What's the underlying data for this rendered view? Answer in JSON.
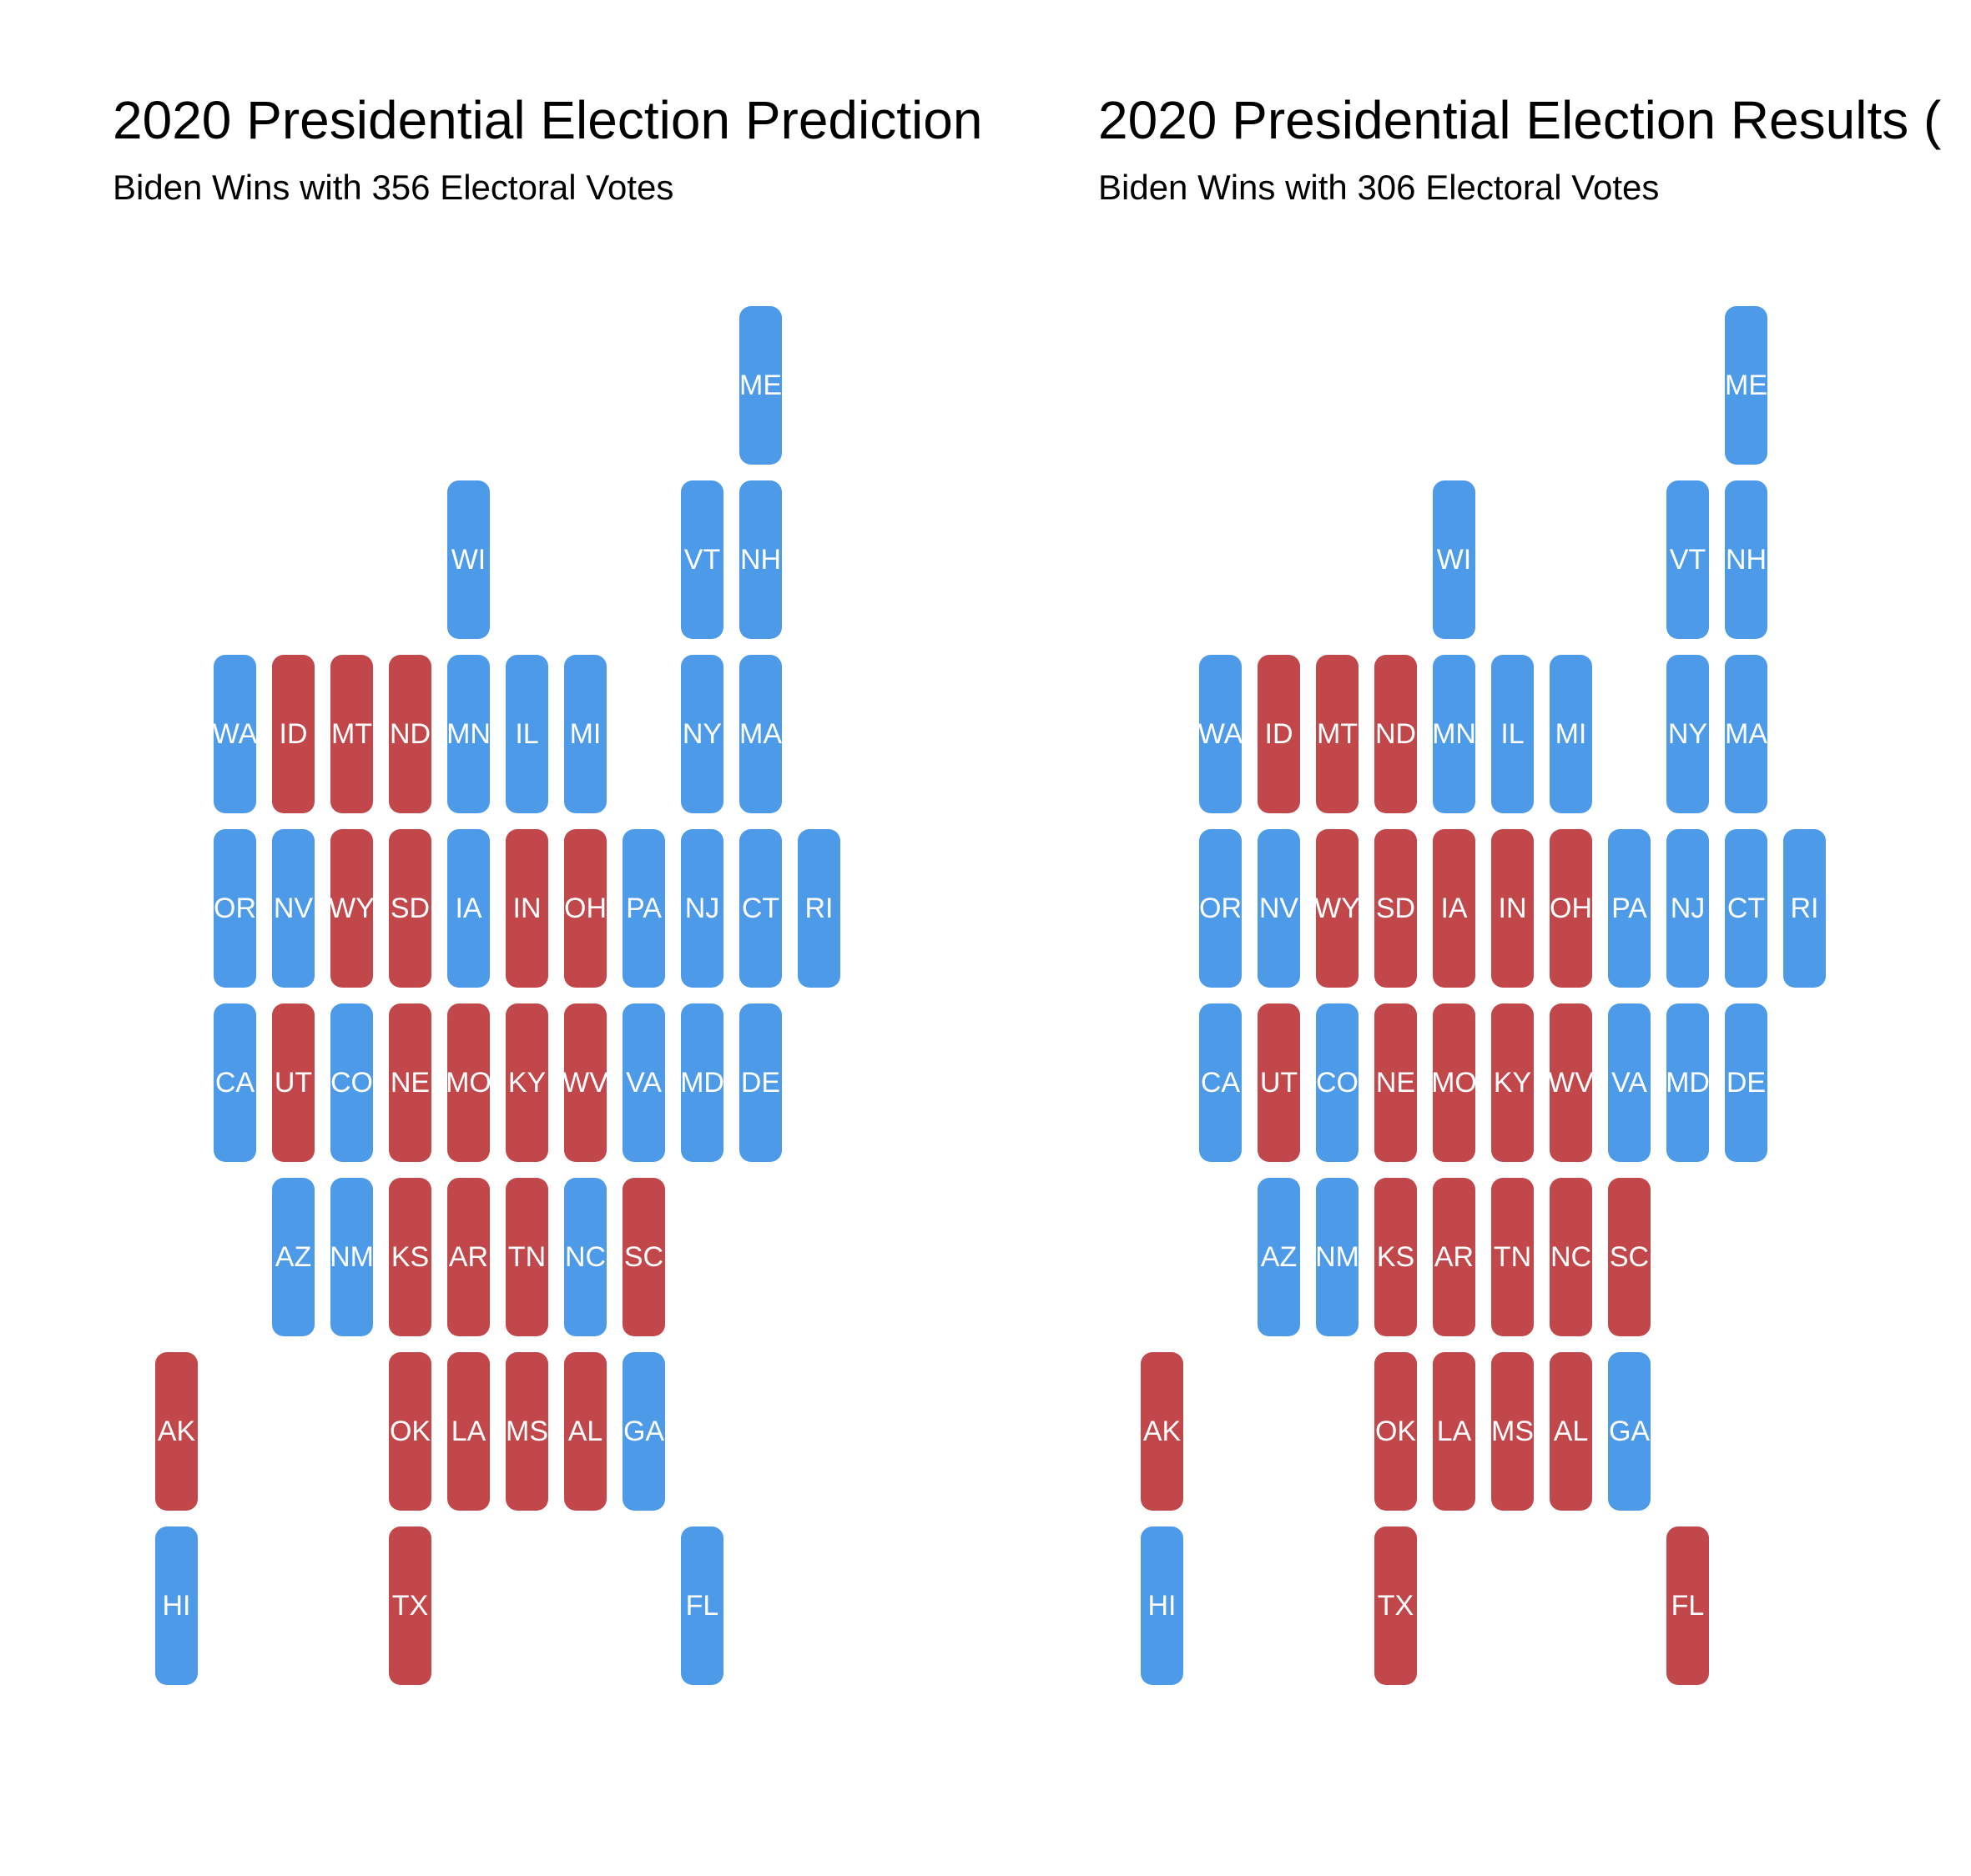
{
  "colors": {
    "dem": "#4d9be8",
    "rep": "#c1474a"
  },
  "panels": [
    {
      "title": "2020 Presidential Election Prediction",
      "subtitle": "Biden Wins with 356 Electoral Votes",
      "states": [
        {
          "abbr": "ME",
          "row": 0,
          "col": 10,
          "winner": "dem"
        },
        {
          "abbr": "WI",
          "row": 1,
          "col": 5,
          "winner": "dem"
        },
        {
          "abbr": "VT",
          "row": 1,
          "col": 9,
          "winner": "dem"
        },
        {
          "abbr": "NH",
          "row": 1,
          "col": 10,
          "winner": "dem"
        },
        {
          "abbr": "WA",
          "row": 2,
          "col": 1,
          "winner": "dem"
        },
        {
          "abbr": "ID",
          "row": 2,
          "col": 2,
          "winner": "rep"
        },
        {
          "abbr": "MT",
          "row": 2,
          "col": 3,
          "winner": "rep"
        },
        {
          "abbr": "ND",
          "row": 2,
          "col": 4,
          "winner": "rep"
        },
        {
          "abbr": "MN",
          "row": 2,
          "col": 5,
          "winner": "dem"
        },
        {
          "abbr": "IL",
          "row": 2,
          "col": 6,
          "winner": "dem"
        },
        {
          "abbr": "MI",
          "row": 2,
          "col": 7,
          "winner": "dem"
        },
        {
          "abbr": "NY",
          "row": 2,
          "col": 9,
          "winner": "dem"
        },
        {
          "abbr": "MA",
          "row": 2,
          "col": 10,
          "winner": "dem"
        },
        {
          "abbr": "OR",
          "row": 3,
          "col": 1,
          "winner": "dem"
        },
        {
          "abbr": "NV",
          "row": 3,
          "col": 2,
          "winner": "dem"
        },
        {
          "abbr": "WY",
          "row": 3,
          "col": 3,
          "winner": "rep"
        },
        {
          "abbr": "SD",
          "row": 3,
          "col": 4,
          "winner": "rep"
        },
        {
          "abbr": "IA",
          "row": 3,
          "col": 5,
          "winner": "dem"
        },
        {
          "abbr": "IN",
          "row": 3,
          "col": 6,
          "winner": "rep"
        },
        {
          "abbr": "OH",
          "row": 3,
          "col": 7,
          "winner": "rep"
        },
        {
          "abbr": "PA",
          "row": 3,
          "col": 8,
          "winner": "dem"
        },
        {
          "abbr": "NJ",
          "row": 3,
          "col": 9,
          "winner": "dem"
        },
        {
          "abbr": "CT",
          "row": 3,
          "col": 10,
          "winner": "dem"
        },
        {
          "abbr": "RI",
          "row": 3,
          "col": 11,
          "winner": "dem"
        },
        {
          "abbr": "CA",
          "row": 4,
          "col": 1,
          "winner": "dem"
        },
        {
          "abbr": "UT",
          "row": 4,
          "col": 2,
          "winner": "rep"
        },
        {
          "abbr": "CO",
          "row": 4,
          "col": 3,
          "winner": "dem"
        },
        {
          "abbr": "NE",
          "row": 4,
          "col": 4,
          "winner": "rep"
        },
        {
          "abbr": "MO",
          "row": 4,
          "col": 5,
          "winner": "rep"
        },
        {
          "abbr": "KY",
          "row": 4,
          "col": 6,
          "winner": "rep"
        },
        {
          "abbr": "WV",
          "row": 4,
          "col": 7,
          "winner": "rep"
        },
        {
          "abbr": "VA",
          "row": 4,
          "col": 8,
          "winner": "dem"
        },
        {
          "abbr": "MD",
          "row": 4,
          "col": 9,
          "winner": "dem"
        },
        {
          "abbr": "DE",
          "row": 4,
          "col": 10,
          "winner": "dem"
        },
        {
          "abbr": "AZ",
          "row": 5,
          "col": 2,
          "winner": "dem"
        },
        {
          "abbr": "NM",
          "row": 5,
          "col": 3,
          "winner": "dem"
        },
        {
          "abbr": "KS",
          "row": 5,
          "col": 4,
          "winner": "rep"
        },
        {
          "abbr": "AR",
          "row": 5,
          "col": 5,
          "winner": "rep"
        },
        {
          "abbr": "TN",
          "row": 5,
          "col": 6,
          "winner": "rep"
        },
        {
          "abbr": "NC",
          "row": 5,
          "col": 7,
          "winner": "dem"
        },
        {
          "abbr": "SC",
          "row": 5,
          "col": 8,
          "winner": "rep"
        },
        {
          "abbr": "AK",
          "row": 6,
          "col": 0,
          "winner": "rep"
        },
        {
          "abbr": "OK",
          "row": 6,
          "col": 4,
          "winner": "rep"
        },
        {
          "abbr": "LA",
          "row": 6,
          "col": 5,
          "winner": "rep"
        },
        {
          "abbr": "MS",
          "row": 6,
          "col": 6,
          "winner": "rep"
        },
        {
          "abbr": "AL",
          "row": 6,
          "col": 7,
          "winner": "rep"
        },
        {
          "abbr": "GA",
          "row": 6,
          "col": 8,
          "winner": "dem"
        },
        {
          "abbr": "HI",
          "row": 7,
          "col": 0,
          "winner": "dem"
        },
        {
          "abbr": "TX",
          "row": 7,
          "col": 4,
          "winner": "rep"
        },
        {
          "abbr": "FL",
          "row": 7,
          "col": 9,
          "winner": "dem"
        }
      ]
    },
    {
      "title": "2020 Presidential Election Results (",
      "subtitle": "Biden Wins with 306 Electoral Votes",
      "states": [
        {
          "abbr": "ME",
          "row": 0,
          "col": 10,
          "winner": "dem"
        },
        {
          "abbr": "WI",
          "row": 1,
          "col": 5,
          "winner": "dem"
        },
        {
          "abbr": "VT",
          "row": 1,
          "col": 9,
          "winner": "dem"
        },
        {
          "abbr": "NH",
          "row": 1,
          "col": 10,
          "winner": "dem"
        },
        {
          "abbr": "WA",
          "row": 2,
          "col": 1,
          "winner": "dem"
        },
        {
          "abbr": "ID",
          "row": 2,
          "col": 2,
          "winner": "rep"
        },
        {
          "abbr": "MT",
          "row": 2,
          "col": 3,
          "winner": "rep"
        },
        {
          "abbr": "ND",
          "row": 2,
          "col": 4,
          "winner": "rep"
        },
        {
          "abbr": "MN",
          "row": 2,
          "col": 5,
          "winner": "dem"
        },
        {
          "abbr": "IL",
          "row": 2,
          "col": 6,
          "winner": "dem"
        },
        {
          "abbr": "MI",
          "row": 2,
          "col": 7,
          "winner": "dem"
        },
        {
          "abbr": "NY",
          "row": 2,
          "col": 9,
          "winner": "dem"
        },
        {
          "abbr": "MA",
          "row": 2,
          "col": 10,
          "winner": "dem"
        },
        {
          "abbr": "OR",
          "row": 3,
          "col": 1,
          "winner": "dem"
        },
        {
          "abbr": "NV",
          "row": 3,
          "col": 2,
          "winner": "dem"
        },
        {
          "abbr": "WY",
          "row": 3,
          "col": 3,
          "winner": "rep"
        },
        {
          "abbr": "SD",
          "row": 3,
          "col": 4,
          "winner": "rep"
        },
        {
          "abbr": "IA",
          "row": 3,
          "col": 5,
          "winner": "rep"
        },
        {
          "abbr": "IN",
          "row": 3,
          "col": 6,
          "winner": "rep"
        },
        {
          "abbr": "OH",
          "row": 3,
          "col": 7,
          "winner": "rep"
        },
        {
          "abbr": "PA",
          "row": 3,
          "col": 8,
          "winner": "dem"
        },
        {
          "abbr": "NJ",
          "row": 3,
          "col": 9,
          "winner": "dem"
        },
        {
          "abbr": "CT",
          "row": 3,
          "col": 10,
          "winner": "dem"
        },
        {
          "abbr": "RI",
          "row": 3,
          "col": 11,
          "winner": "dem"
        },
        {
          "abbr": "CA",
          "row": 4,
          "col": 1,
          "winner": "dem"
        },
        {
          "abbr": "UT",
          "row": 4,
          "col": 2,
          "winner": "rep"
        },
        {
          "abbr": "CO",
          "row": 4,
          "col": 3,
          "winner": "dem"
        },
        {
          "abbr": "NE",
          "row": 4,
          "col": 4,
          "winner": "rep"
        },
        {
          "abbr": "MO",
          "row": 4,
          "col": 5,
          "winner": "rep"
        },
        {
          "abbr": "KY",
          "row": 4,
          "col": 6,
          "winner": "rep"
        },
        {
          "abbr": "WV",
          "row": 4,
          "col": 7,
          "winner": "rep"
        },
        {
          "abbr": "VA",
          "row": 4,
          "col": 8,
          "winner": "dem"
        },
        {
          "abbr": "MD",
          "row": 4,
          "col": 9,
          "winner": "dem"
        },
        {
          "abbr": "DE",
          "row": 4,
          "col": 10,
          "winner": "dem"
        },
        {
          "abbr": "AZ",
          "row": 5,
          "col": 2,
          "winner": "dem"
        },
        {
          "abbr": "NM",
          "row": 5,
          "col": 3,
          "winner": "dem"
        },
        {
          "abbr": "KS",
          "row": 5,
          "col": 4,
          "winner": "rep"
        },
        {
          "abbr": "AR",
          "row": 5,
          "col": 5,
          "winner": "rep"
        },
        {
          "abbr": "TN",
          "row": 5,
          "col": 6,
          "winner": "rep"
        },
        {
          "abbr": "NC",
          "row": 5,
          "col": 7,
          "winner": "rep"
        },
        {
          "abbr": "SC",
          "row": 5,
          "col": 8,
          "winner": "rep"
        },
        {
          "abbr": "AK",
          "row": 6,
          "col": 0,
          "winner": "rep"
        },
        {
          "abbr": "OK",
          "row": 6,
          "col": 4,
          "winner": "rep"
        },
        {
          "abbr": "LA",
          "row": 6,
          "col": 5,
          "winner": "rep"
        },
        {
          "abbr": "MS",
          "row": 6,
          "col": 6,
          "winner": "rep"
        },
        {
          "abbr": "AL",
          "row": 6,
          "col": 7,
          "winner": "rep"
        },
        {
          "abbr": "GA",
          "row": 6,
          "col": 8,
          "winner": "dem"
        },
        {
          "abbr": "HI",
          "row": 7,
          "col": 0,
          "winner": "dem"
        },
        {
          "abbr": "TX",
          "row": 7,
          "col": 4,
          "winner": "rep"
        },
        {
          "abbr": "FL",
          "row": 7,
          "col": 9,
          "winner": "rep"
        }
      ]
    }
  ]
}
